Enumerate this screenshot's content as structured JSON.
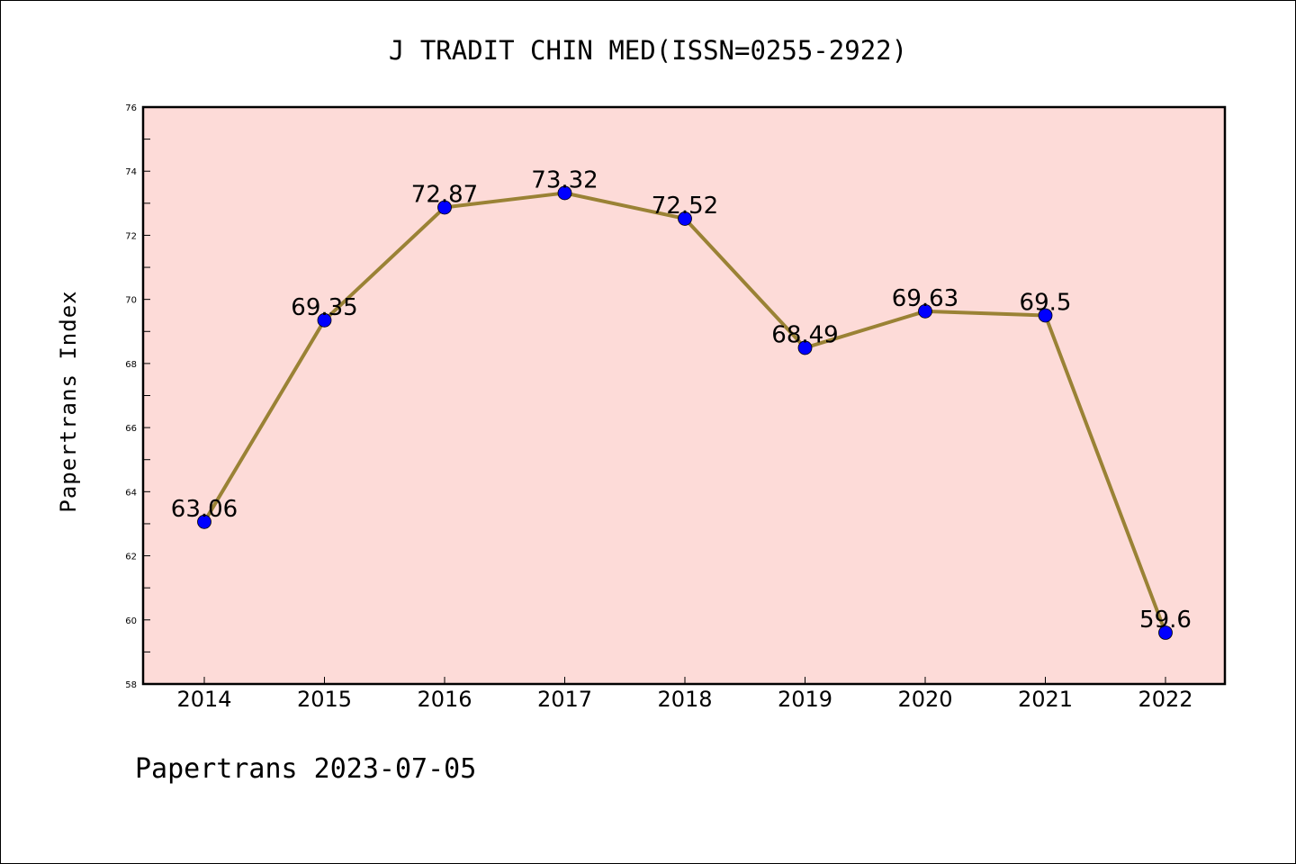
{
  "chart_data": {
    "type": "line",
    "title": "J TRADIT CHIN MED(ISSN=0255-2922)",
    "xlabel": "",
    "ylabel": "Papertrans Index",
    "x": [
      "2014",
      "2015",
      "2016",
      "2017",
      "2018",
      "2019",
      "2020",
      "2021",
      "2022"
    ],
    "series": [
      {
        "values": [
          63.06,
          69.35,
          72.87,
          73.32,
          72.52,
          68.49,
          69.63,
          69.5,
          59.6
        ],
        "labels": [
          "63.06",
          "69.35",
          "72.87",
          "73.32",
          "72.52",
          "68.49",
          "69.63",
          "69.5",
          "59.6"
        ],
        "line_color": "#9a8235",
        "marker_color": "#0000ff"
      }
    ],
    "ylim": [
      58,
      76
    ],
    "yticks": [
      "58",
      "60",
      "62",
      "64",
      "66",
      "68",
      "70",
      "72",
      "74",
      "76"
    ],
    "plot_background": "#fddbd8",
    "grid": false,
    "legend": "none"
  },
  "footer": "Papertrans 2023-07-05"
}
